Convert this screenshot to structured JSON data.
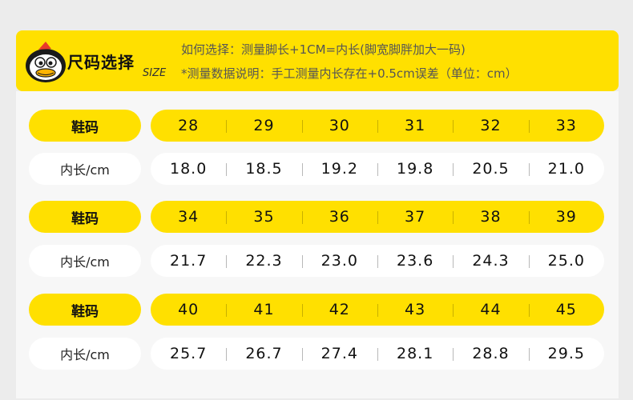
{
  "header": {
    "title": "尺码选择",
    "size_tag": "SIZE",
    "note1": "如何选择：测量脚长+1CM=内长(脚宽脚胖加大一码)",
    "note2": "*测量数据说明：手工测量内长存在+0.5cm误差（单位：cm）",
    "mascot_icon": "penguin-mascot-icon",
    "accent_color": "#ffe000"
  },
  "table": {
    "shoe_size_label": "鞋码",
    "inner_length_label": "内长/cm",
    "groups": [
      {
        "sizes": [
          "28",
          "29",
          "30",
          "31",
          "32",
          "33"
        ],
        "lengths": [
          "18.0",
          "18.5",
          "19.2",
          "19.8",
          "20.5",
          "21.0"
        ]
      },
      {
        "sizes": [
          "34",
          "35",
          "36",
          "37",
          "38",
          "39"
        ],
        "lengths": [
          "21.7",
          "22.3",
          "23.0",
          "23.6",
          "24.3",
          "25.0"
        ]
      },
      {
        "sizes": [
          "40",
          "41",
          "42",
          "43",
          "44",
          "45"
        ],
        "lengths": [
          "25.7",
          "26.7",
          "27.4",
          "28.1",
          "28.8",
          "29.5"
        ]
      }
    ]
  }
}
